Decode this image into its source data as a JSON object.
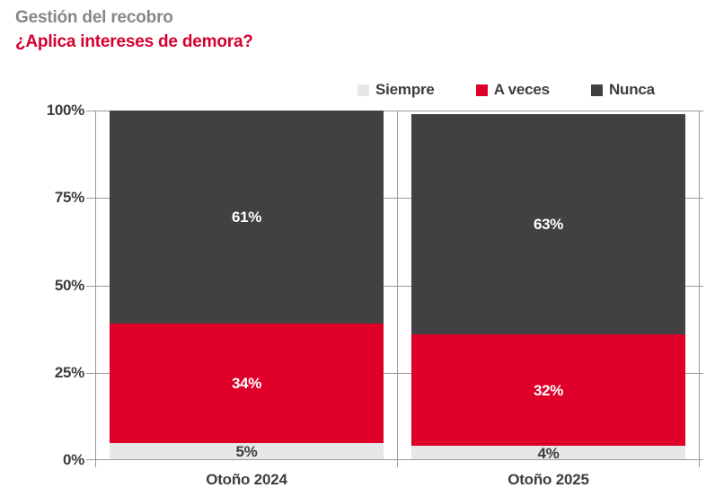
{
  "header": {
    "kicker": "Gestión del recobro",
    "title": "¿Aplica intereses de demora?"
  },
  "colors": {
    "background": "#ffffff",
    "kicker_gray": "#878787",
    "title_red": "#d4002e",
    "axis_line": "#9b9b9b",
    "axis_text": "#3d3d3d"
  },
  "chart_data": {
    "type": "bar",
    "stacked": true,
    "orientation": "vertical",
    "title": "Gestión del recobro",
    "subtitle": "¿Aplica intereses de demora?",
    "categories": [
      "Otoño 2024",
      "Otoño 2025"
    ],
    "series": [
      {
        "name": "Siempre",
        "color": "#e7e7e7",
        "label_color": "#3d3d3d",
        "values": [
          5,
          4
        ]
      },
      {
        "name": "A veces",
        "color": "#de0029",
        "label_color": "#ffffff",
        "values": [
          34,
          32
        ]
      },
      {
        "name": "Nunca",
        "color": "#414141",
        "label_color": "#ffffff",
        "values": [
          61,
          63
        ]
      }
    ],
    "value_suffix": "%",
    "ylim": [
      0,
      100
    ],
    "yticks": [
      0,
      25,
      50,
      75,
      100
    ],
    "ytick_suffix": "%",
    "grid": true,
    "legend_position": "top-right"
  }
}
